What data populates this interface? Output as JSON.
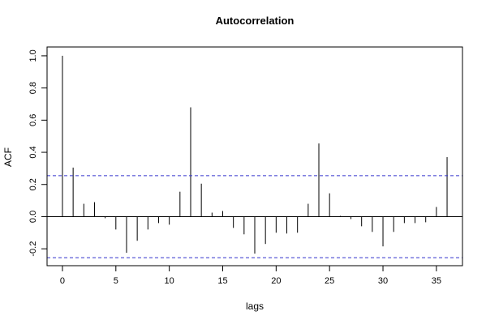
{
  "chart_data": {
    "type": "bar",
    "title": "Autocorrelation",
    "xlabel": "lags",
    "ylabel": "ACF",
    "xlim": [
      -1.44,
      37.44
    ],
    "ylim": [
      -0.305,
      1.055
    ],
    "x_ticks": [
      0,
      5,
      10,
      15,
      20,
      25,
      30,
      35
    ],
    "y_ticks": [
      -0.2,
      0.0,
      0.2,
      0.4,
      0.6,
      0.8,
      1.0
    ],
    "y_tick_labels": [
      "-0.2",
      "0.0",
      "0.2",
      "0.4",
      "0.6",
      "0.8",
      "1.0"
    ],
    "zero_line": 0,
    "confidence_bound": 0.255,
    "confidence_line_color": "#3333cc",
    "grid": false,
    "x": [
      0,
      1,
      2,
      3,
      4,
      5,
      6,
      7,
      8,
      9,
      10,
      11,
      12,
      13,
      14,
      15,
      16,
      17,
      18,
      19,
      20,
      21,
      22,
      23,
      24,
      25,
      26,
      27,
      28,
      29,
      30,
      31,
      32,
      33,
      34,
      35,
      36
    ],
    "values": [
      1.0,
      0.305,
      0.08,
      0.09,
      -0.01,
      -0.08,
      -0.225,
      -0.15,
      -0.08,
      -0.04,
      -0.05,
      0.155,
      0.68,
      0.205,
      0.025,
      0.035,
      -0.07,
      -0.11,
      -0.23,
      -0.17,
      -0.1,
      -0.105,
      -0.1,
      0.08,
      0.455,
      0.145,
      0.005,
      -0.015,
      -0.06,
      -0.095,
      -0.185,
      -0.095,
      -0.04,
      -0.04,
      -0.035,
      0.06,
      0.37
    ]
  }
}
